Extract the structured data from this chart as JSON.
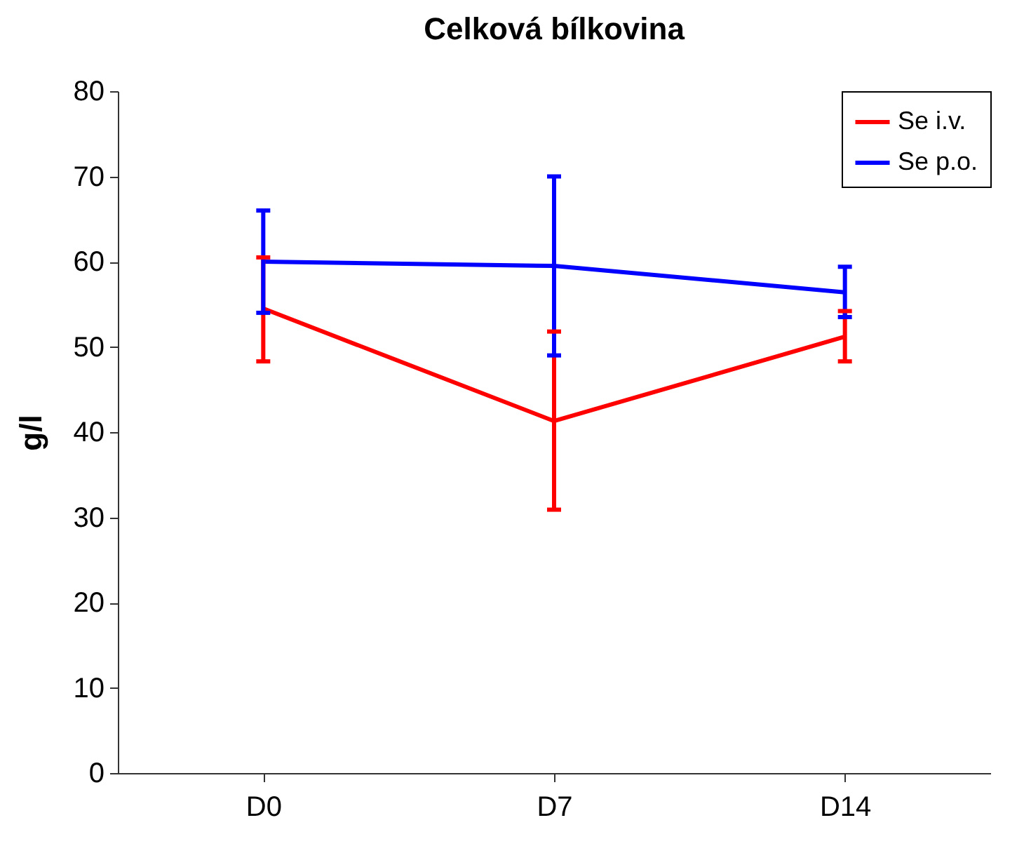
{
  "chart_data": {
    "type": "line",
    "title": "Celková bílkovina",
    "ylabel": "g/l",
    "categories": [
      "D0",
      "D7",
      "D14"
    ],
    "ylim": [
      0,
      80
    ],
    "yticks": [
      0,
      10,
      20,
      30,
      40,
      50,
      60,
      70,
      80
    ],
    "grid": false,
    "legend": "top right",
    "marker": "none",
    "line_style": "solid",
    "series": [
      {
        "name": "Se i.v.",
        "color": "#ff0000",
        "values": [
          54.5,
          41.3,
          51.2
        ],
        "errors": [
          [
            48.3,
            60.5
          ],
          [
            30.9,
            51.8
          ],
          [
            48.3,
            54.2
          ]
        ]
      },
      {
        "name": "Se p.o.",
        "color": "#0000ff",
        "values": [
          60,
          59.5,
          56.4
        ],
        "errors": [
          [
            54,
            66
          ],
          [
            49,
            70
          ],
          [
            53.5,
            59.4
          ]
        ]
      }
    ]
  }
}
